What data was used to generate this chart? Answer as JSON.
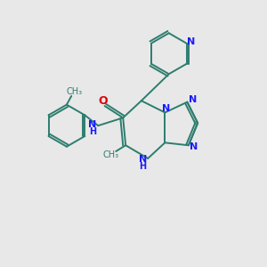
{
  "bg_color": "#e8e8e8",
  "bond_color": "#2d7d6e",
  "n_color": "#1a1aff",
  "o_color": "#dd0000",
  "lw": 1.4,
  "figsize": [
    3.0,
    3.0
  ],
  "dpi": 100,
  "xlim": [
    0,
    10
  ],
  "ylim": [
    0,
    10
  ]
}
